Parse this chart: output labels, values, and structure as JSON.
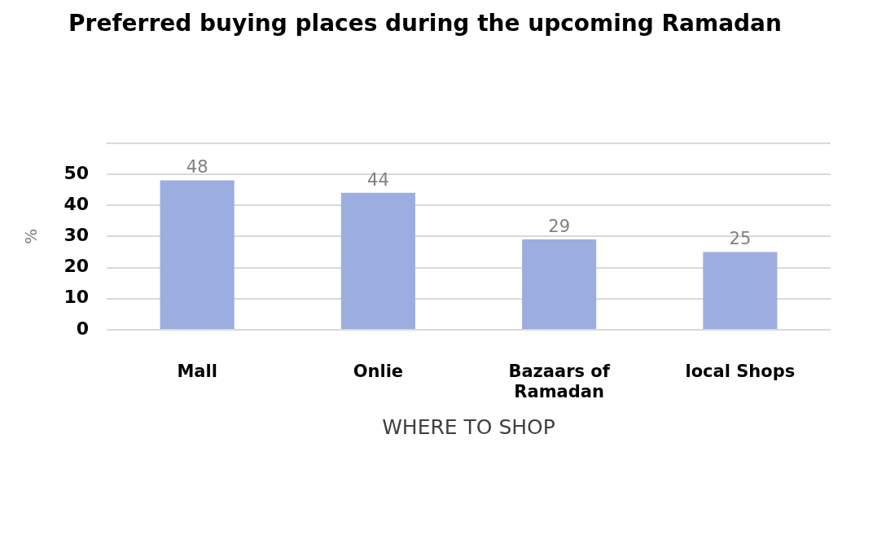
{
  "chart_data": {
    "type": "bar",
    "title": "Preferred buying places during the upcoming Ramadan",
    "xlabel": "WHERE TO SHOP",
    "ylabel": "%",
    "categories": [
      "Mall",
      "Onlie",
      "Bazaars of Ramadan",
      "local Shops"
    ],
    "values": [
      48,
      44,
      29,
      25
    ],
    "color": "#9caee0",
    "ylim": [
      0,
      60
    ],
    "yticks": [
      0,
      10,
      20,
      30,
      40,
      50,
      {
        "value": 60,
        "label": null
      }
    ],
    "grid": "y",
    "data_labels": true
  }
}
